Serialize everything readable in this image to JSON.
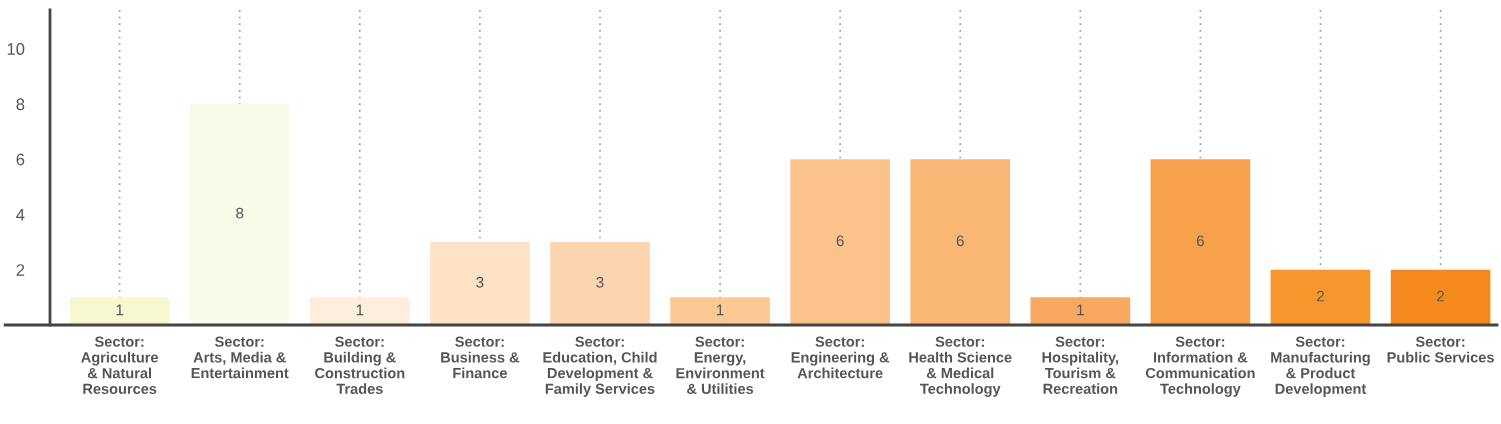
{
  "chart_data": {
    "type": "bar",
    "categories": [
      "Sector:\nAgriculture\n& Natural\nResources",
      "Sector:\nArts, Media &\nEntertainment",
      "Sector:\nBuilding &\nConstruction\nTrades",
      "Sector:\nBusiness &\nFinance",
      "Sector:\nEducation, Child\nDevelopment &\nFamily Services",
      "Sector:\nEnergy,\nEnvironment\n& Utilities",
      "Sector:\nEngineering &\nArchitecture",
      "Sector:\nHealth Science\n& Medical\nTechnology",
      "Sector:\nHospitality,\nTourism &\nRecreation",
      "Sector:\nInformation &\nCommunication\nTechnology",
      "Sector:\nManufacturing\n& Product\nDevelopment",
      "Sector:\nPublic Services"
    ],
    "values": [
      1,
      8,
      1,
      3,
      3,
      1,
      6,
      6,
      1,
      6,
      2,
      2
    ],
    "colors": [
      "#f7f7d0",
      "#fafae9",
      "#fdeedd",
      "#fde2c6",
      "#fcd5ae",
      "#fcc995",
      "#fbc28a",
      "#fab674",
      "#f8a860",
      "#f8a14b",
      "#f7962d",
      "#f48a1c"
    ],
    "ylim": [
      0,
      11.4
    ],
    "yticks": [
      2,
      4,
      6,
      8,
      10
    ],
    "grid": "x",
    "data_labels": true
  }
}
